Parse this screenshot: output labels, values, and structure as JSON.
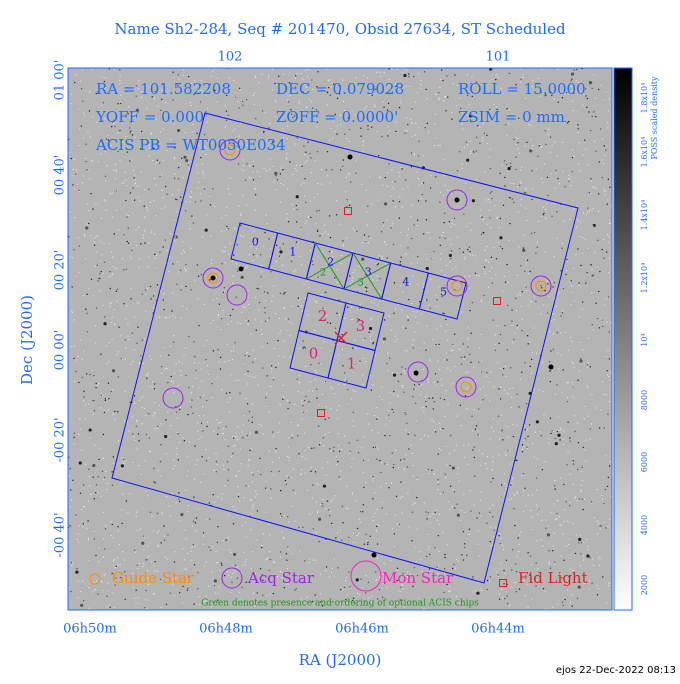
{
  "header": {
    "title": "Name Sh2-284, Seq # 201470, Obsid 27634, ST Scheduled"
  },
  "top_axis": {
    "ticks": [
      "102",
      "101"
    ]
  },
  "left_axis": {
    "label": "Dec (J2000)",
    "ticks": [
      "01 00'",
      "00 40'",
      "00 20'",
      "00 00'",
      "-00 20'",
      "-00 40'"
    ]
  },
  "bottom_axis": {
    "label": "RA (J2000)",
    "ticks": [
      "06h50m",
      "06h48m",
      "06h46m",
      "06h44m"
    ]
  },
  "colorbar": {
    "label": "POSS scaled density",
    "ticks": [
      "2000",
      "4000",
      "6000",
      "8000",
      "10⁴",
      "1.2x10⁴",
      "1.4x10⁴",
      "1.6x10⁴",
      "1.8x10⁴"
    ]
  },
  "info": [
    "RA = 101.582208",
    "DEC = 0.079028",
    "ROLL = 15.0000",
    "YOFF =    0.000'",
    "ZOFF =  0.0000'",
    "ZSIM = 0 mm",
    "ACIS PB = WT0050E034"
  ],
  "acis_s_chips": [
    "0",
    "1",
    "2",
    "3",
    "4",
    "5"
  ],
  "acis_s_optional": [
    "2",
    "3"
  ],
  "acis_i_chips": [
    "2",
    "3",
    "0",
    "1"
  ],
  "legend": [
    "Guide Star",
    "Acq Star",
    "Mon Star",
    "Fid Light"
  ],
  "legend_note": "Green denotes presence and ordering of optional ACIS chips",
  "footer": "ejos 22-Dec-2022 08:13"
}
